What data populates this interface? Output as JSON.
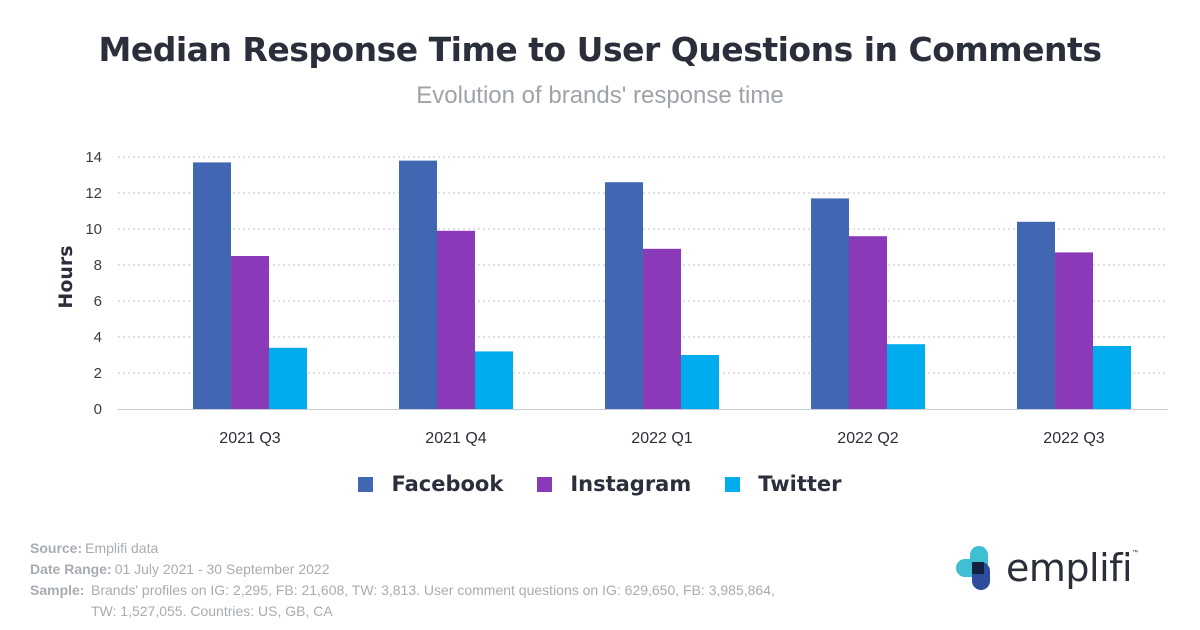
{
  "chart_data": {
    "type": "bar",
    "title": "Median Response Time to User Questions in Comments",
    "subtitle": "Evolution of brands' response time",
    "xlabel": "",
    "ylabel": "Hours",
    "ylim": [
      0,
      14
    ],
    "yticks": [
      "0",
      "2",
      "4",
      "6",
      "8",
      "10",
      "12",
      "14"
    ],
    "grid": "horizontal dotted",
    "legend_position": "bottom",
    "categories": [
      "2021 Q3",
      "2021 Q4",
      "2022 Q1",
      "2022 Q2",
      "2022 Q3"
    ],
    "series": [
      {
        "name": "Facebook",
        "color": "#4267b2",
        "values": [
          13.7,
          13.8,
          12.6,
          11.7,
          10.4
        ]
      },
      {
        "name": "Instagram",
        "color": "#8a3ab9",
        "values": [
          8.5,
          9.9,
          8.9,
          9.6,
          8.7
        ]
      },
      {
        "name": "Twitter",
        "color": "#00acee",
        "values": [
          3.4,
          3.2,
          3.0,
          3.6,
          3.5
        ]
      }
    ]
  },
  "footer": {
    "source_label": "Source:",
    "source_value": "Emplifi data",
    "date_range_label": "Date Range:",
    "date_range_value": "01 July 2021 - 30 September 2022",
    "sample_label": "Sample:",
    "sample_value": "Brands' profiles on IG: 2,295, FB: 21,608, TW: 3,813. User comment questions on IG: 629,650, FB: 3,985,864, TW: 1,527,055. Countries: US, GB, CA"
  },
  "logo": {
    "text": "emplifi",
    "trademark": "™",
    "icon": "emplifi-logo-icon",
    "colors": [
      "#3fbfd4",
      "#2e4c9c",
      "#13203f"
    ]
  }
}
